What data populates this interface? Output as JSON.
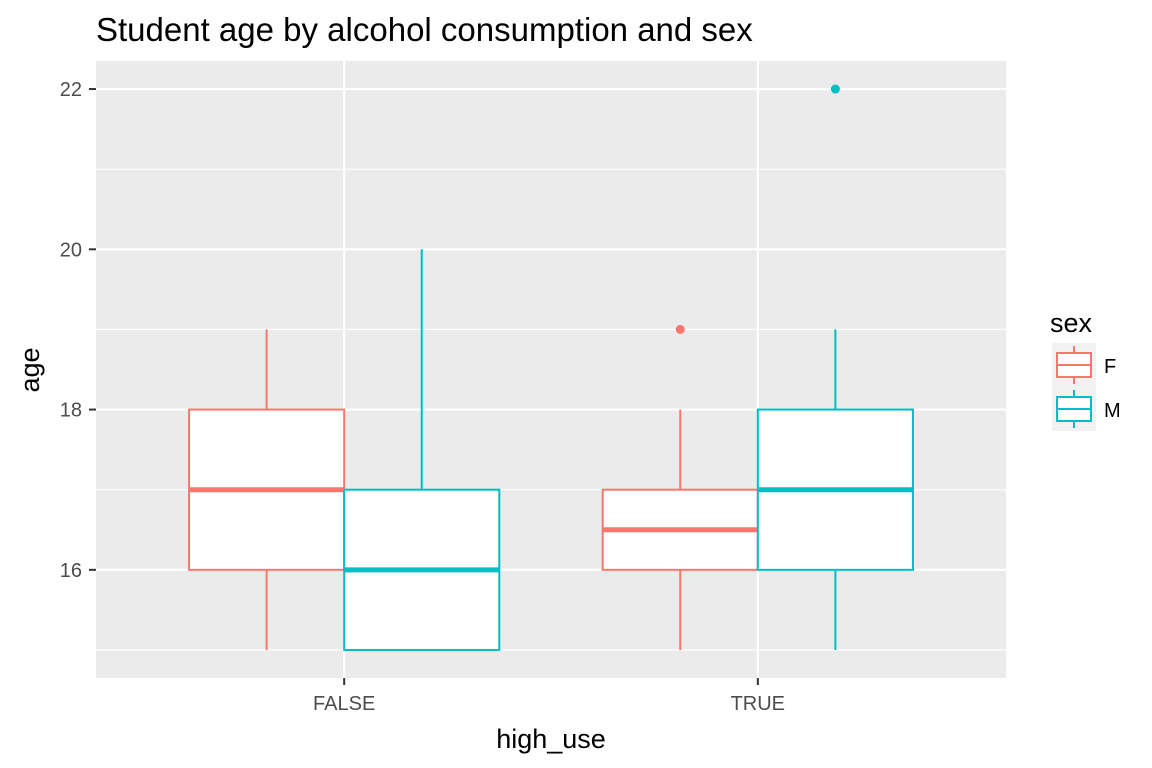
{
  "chart_data": {
    "type": "boxplot",
    "title": "Student age by alcohol consumption and sex",
    "xlabel": "high_use",
    "ylabel": "age",
    "categories": [
      "FALSE",
      "TRUE"
    ],
    "ylim": [
      14.65,
      22.35
    ],
    "yticks": [
      16,
      18,
      20,
      22
    ],
    "grid": true,
    "legend": {
      "title": "sex",
      "position": "right"
    },
    "series": [
      {
        "name": "F",
        "color": "#F8766D",
        "boxes": [
          {
            "category": "FALSE",
            "min": 15,
            "q1": 16,
            "median": 17,
            "q3": 18,
            "max": 19,
            "outliers": []
          },
          {
            "category": "TRUE",
            "min": 15,
            "q1": 16,
            "median": 16.5,
            "q3": 17,
            "max": 18,
            "outliers": [
              19
            ]
          }
        ]
      },
      {
        "name": "M",
        "color": "#00BFC4",
        "boxes": [
          {
            "category": "FALSE",
            "min": 15,
            "q1": 15,
            "median": 16,
            "q3": 17,
            "max": 20,
            "outliers": []
          },
          {
            "category": "TRUE",
            "min": 15,
            "q1": 16,
            "median": 17,
            "q3": 18,
            "max": 19,
            "outliers": [
              22
            ]
          }
        ]
      }
    ],
    "panel_color": "#EBEBEB",
    "grid_color": "#FFFFFF"
  }
}
